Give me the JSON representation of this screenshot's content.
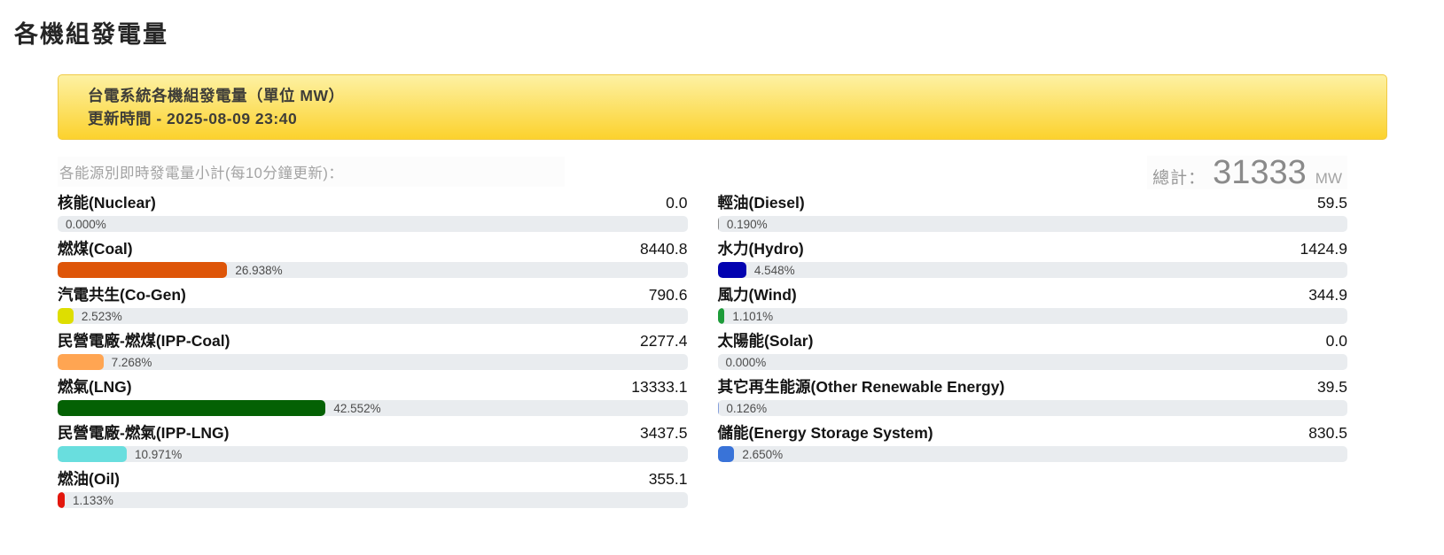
{
  "page": {
    "title": "各機組發電量"
  },
  "banner": {
    "line1": "台電系統各機組發電量（單位 MW）",
    "line2": "更新時間 - 2025-08-09 23:40"
  },
  "colors": {
    "banner_gradient_top": "#fdf1a3",
    "banner_gradient_bottom": "#fcd22d",
    "banner_border": "#f0ca45",
    "bar_track": "#e9ecef"
  },
  "energy": {
    "subtitle": "各能源別即時發電量小計(每10分鐘更新)：",
    "total_label": "總計：",
    "total_value": "31333",
    "total_unit": "MW",
    "columns": [
      [
        {
          "label": "核能(Nuclear)",
          "value": "0.0",
          "percent": 0.0,
          "percent_label": "0.000%",
          "color": "#888888"
        },
        {
          "label": "燃煤(Coal)",
          "value": "8440.8",
          "percent": 26.938,
          "percent_label": "26.938%",
          "color": "#de5508"
        },
        {
          "label": "汽電共生(Co-Gen)",
          "value": "790.6",
          "percent": 2.523,
          "percent_label": "2.523%",
          "color": "#dede00"
        },
        {
          "label": "民營電廠-燃煤(IPP-Coal)",
          "value": "2277.4",
          "percent": 7.268,
          "percent_label": "7.268%",
          "color": "#ffa552"
        },
        {
          "label": "燃氣(LNG)",
          "value": "13333.1",
          "percent": 42.552,
          "percent_label": "42.552%",
          "color": "#046104"
        },
        {
          "label": "民營電廠-燃氣(IPP-LNG)",
          "value": "3437.5",
          "percent": 10.971,
          "percent_label": "10.971%",
          "color": "#69dede"
        },
        {
          "label": "燃油(Oil)",
          "value": "355.1",
          "percent": 1.133,
          "percent_label": "1.133%",
          "color": "#e3170d"
        }
      ],
      [
        {
          "label": "輕油(Diesel)",
          "value": "59.5",
          "percent": 0.19,
          "percent_label": "0.190%",
          "color": "#8a8a8a"
        },
        {
          "label": "水力(Hydro)",
          "value": "1424.9",
          "percent": 4.548,
          "percent_label": "4.548%",
          "color": "#0202b0"
        },
        {
          "label": "風力(Wind)",
          "value": "344.9",
          "percent": 1.101,
          "percent_label": "1.101%",
          "color": "#1e9c3a"
        },
        {
          "label": "太陽能(Solar)",
          "value": "0.0",
          "percent": 0.0,
          "percent_label": "0.000%",
          "color": "#f0b400"
        },
        {
          "label": "其它再生能源(Other Renewable Energy)",
          "value": "39.5",
          "percent": 0.126,
          "percent_label": "0.126%",
          "color": "#86a0dd"
        },
        {
          "label": "儲能(Energy Storage System)",
          "value": "830.5",
          "percent": 2.65,
          "percent_label": "2.650%",
          "color": "#3973d8"
        }
      ]
    ]
  }
}
